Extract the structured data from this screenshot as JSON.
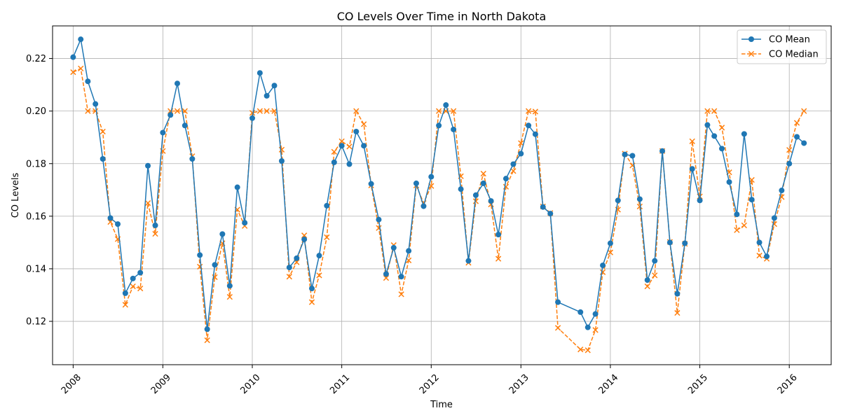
{
  "chart_data": {
    "type": "line",
    "title": "CO Levels Over Time in North Dakota",
    "xlabel": "Time",
    "ylabel": "CO Levels",
    "grid": true,
    "legend_position": "top-right",
    "xlim": [
      "2007-10-09",
      "2016-06-20"
    ],
    "ylim": [
      0.1035,
      0.2324
    ],
    "x_ticks": [
      "2008-01-01",
      "2009-01-01",
      "2010-01-01",
      "2011-01-01",
      "2012-01-01",
      "2013-01-01",
      "2014-01-01",
      "2015-01-01",
      "2016-01-01"
    ],
    "x_tick_labels": [
      "2008",
      "2009",
      "2010",
      "2011",
      "2012",
      "2013",
      "2014",
      "2015",
      "2016"
    ],
    "y_ticks": [
      0.12,
      0.14,
      0.16,
      0.18,
      0.2,
      0.22
    ],
    "y_tick_labels": [
      "0.12",
      "0.14",
      "0.16",
      "0.18",
      "0.20",
      "0.22"
    ],
    "x": [
      "2008-01-01",
      "2008-02-01",
      "2008-03-01",
      "2008-04-01",
      "2008-05-01",
      "2008-06-01",
      "2008-07-01",
      "2008-08-01",
      "2008-09-01",
      "2008-10-01",
      "2008-11-01",
      "2008-12-01",
      "2009-01-01",
      "2009-02-01",
      "2009-03-01",
      "2009-04-01",
      "2009-05-01",
      "2009-06-01",
      "2009-07-01",
      "2009-08-01",
      "2009-09-01",
      "2009-10-01",
      "2009-11-01",
      "2009-12-01",
      "2010-01-01",
      "2010-02-01",
      "2010-03-01",
      "2010-04-01",
      "2010-05-01",
      "2010-06-01",
      "2010-07-01",
      "2010-08-01",
      "2010-09-01",
      "2010-10-01",
      "2010-11-01",
      "2010-12-01",
      "2011-01-01",
      "2011-02-01",
      "2011-03-01",
      "2011-04-01",
      "2011-05-01",
      "2011-06-01",
      "2011-07-01",
      "2011-08-01",
      "2011-09-01",
      "2011-10-01",
      "2011-11-01",
      "2011-12-01",
      "2012-01-01",
      "2012-02-01",
      "2012-03-01",
      "2012-04-01",
      "2012-05-01",
      "2012-06-01",
      "2012-07-01",
      "2012-08-01",
      "2012-09-01",
      "2012-10-01",
      "2012-11-01",
      "2012-12-01",
      "2013-01-01",
      "2013-02-01",
      "2013-03-01",
      "2013-04-01",
      "2013-05-01",
      "2013-06-01",
      "2013-09-01",
      "2013-10-01",
      "2013-11-01",
      "2013-12-01",
      "2014-01-01",
      "2014-02-01",
      "2014-03-01",
      "2014-04-01",
      "2014-05-01",
      "2014-06-01",
      "2014-07-01",
      "2014-08-01",
      "2014-09-01",
      "2014-10-01",
      "2014-11-01",
      "2014-12-01",
      "2015-01-01",
      "2015-02-01",
      "2015-03-01",
      "2015-04-01",
      "2015-05-01",
      "2015-06-01",
      "2015-07-01",
      "2015-08-01",
      "2015-09-01",
      "2015-10-01",
      "2015-11-01",
      "2015-12-01",
      "2016-01-01",
      "2016-02-01",
      "2016-03-01"
    ],
    "series": [
      {
        "name": "CO Mean",
        "color": "#1f77b4",
        "style": "solid",
        "marker": "circle",
        "values": [
          0.2205,
          0.2273,
          0.2113,
          0.2027,
          0.1818,
          0.1593,
          0.157,
          0.1307,
          0.1363,
          0.1385,
          0.1792,
          0.1565,
          0.1918,
          0.1985,
          0.2105,
          0.1945,
          0.1818,
          0.1452,
          0.117,
          0.1415,
          0.1532,
          0.1335,
          0.171,
          0.1575,
          0.1973,
          0.2145,
          0.2058,
          0.2097,
          0.181,
          0.1405,
          0.144,
          0.1512,
          0.1325,
          0.145,
          0.164,
          0.1805,
          0.1868,
          0.1798,
          0.1922,
          0.1868,
          0.1723,
          0.1587,
          0.138,
          0.148,
          0.137,
          0.1468,
          0.1725,
          0.1638,
          0.175,
          0.1945,
          0.2023,
          0.193,
          0.1703,
          0.143,
          0.168,
          0.1725,
          0.1658,
          0.153,
          0.1743,
          0.1798,
          0.1838,
          0.1945,
          0.1912,
          0.1635,
          0.161,
          0.1273,
          0.1235,
          0.1177,
          0.1228,
          0.1413,
          0.1497,
          0.166,
          0.1835,
          0.183,
          0.1665,
          0.1357,
          0.143,
          0.1848,
          0.15,
          0.1305,
          0.1497,
          0.178,
          0.166,
          0.1947,
          0.1905,
          0.1857,
          0.173,
          0.1607,
          0.1913,
          0.1663,
          0.15,
          0.1447,
          0.1593,
          0.1698,
          0.18,
          0.1902,
          0.1878
        ]
      },
      {
        "name": "CO Median",
        "color": "#ff7f0e",
        "style": "dashed",
        "marker": "x",
        "values": [
          0.2148,
          0.2162,
          0.2,
          0.2,
          0.1922,
          0.1578,
          0.1513,
          0.1263,
          0.1333,
          0.1325,
          0.165,
          0.1533,
          0.1848,
          0.2,
          0.2,
          0.2,
          0.1828,
          0.1408,
          0.1128,
          0.1368,
          0.1497,
          0.1293,
          0.1625,
          0.1563,
          0.1993,
          0.2,
          0.2,
          0.2,
          0.1853,
          0.137,
          0.1425,
          0.1527,
          0.1273,
          0.1375,
          0.152,
          0.1845,
          0.1885,
          0.1865,
          0.2,
          0.195,
          0.1717,
          0.1555,
          0.1365,
          0.149,
          0.1303,
          0.1432,
          0.1717,
          0.165,
          0.1715,
          0.2,
          0.2,
          0.2,
          0.1752,
          0.1423,
          0.1657,
          0.1762,
          0.1645,
          0.1438,
          0.1712,
          0.1772,
          0.1878,
          0.2,
          0.1998,
          0.1637,
          0.1612,
          0.1175,
          0.1093,
          0.109,
          0.1167,
          0.1387,
          0.1462,
          0.1625,
          0.1838,
          0.1793,
          0.1637,
          0.1333,
          0.1375,
          0.1848,
          0.1502,
          0.1232,
          0.1495,
          0.1885,
          0.1675,
          0.2,
          0.2,
          0.1937,
          0.1767,
          0.1547,
          0.1565,
          0.1738,
          0.145,
          0.1438,
          0.157,
          0.1673,
          0.1852,
          0.1955,
          0.2
        ]
      }
    ]
  }
}
